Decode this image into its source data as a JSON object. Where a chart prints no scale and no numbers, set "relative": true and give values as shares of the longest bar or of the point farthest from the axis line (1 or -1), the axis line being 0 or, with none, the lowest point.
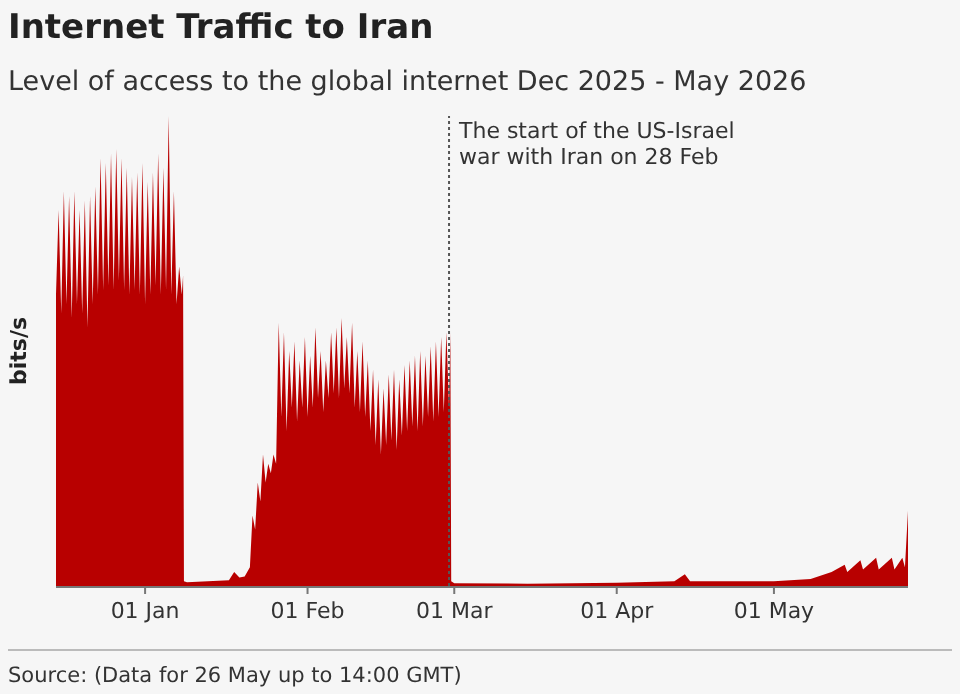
{
  "chart_data": {
    "type": "area",
    "title": "Internet Traffic to Iran",
    "subtitle": "Level of access to the global internet Dec 2025 - May 2026",
    "ylabel": "bits/s",
    "relative": true,
    "color": "#b80000",
    "x": [
      "2025-12-15T00:00",
      "2025-12-15T12:00",
      "2025-12-16T00:00",
      "2025-12-16T12:00",
      "2025-12-17T00:00",
      "2025-12-17T12:00",
      "2025-12-18T00:00",
      "2025-12-18T12:00",
      "2025-12-19T00:00",
      "2025-12-19T12:00",
      "2025-12-20T00:00",
      "2025-12-20T12:00",
      "2025-12-21T00:00",
      "2025-12-21T12:00",
      "2025-12-22T00:00",
      "2025-12-22T12:00",
      "2025-12-23T00:00",
      "2025-12-23T12:00",
      "2025-12-24T00:00",
      "2025-12-24T12:00",
      "2025-12-25T00:00",
      "2025-12-25T12:00",
      "2025-12-26T00:00",
      "2025-12-26T12:00",
      "2025-12-27T00:00",
      "2025-12-27T12:00",
      "2025-12-28T00:00",
      "2025-12-28T12:00",
      "2025-12-29T00:00",
      "2025-12-29T12:00",
      "2025-12-30T00:00",
      "2025-12-30T12:00",
      "2025-12-31T00:00",
      "2025-12-31T12:00",
      "2026-01-01T00:00",
      "2026-01-01T12:00",
      "2026-01-02T00:00",
      "2026-01-02T12:00",
      "2026-01-03T00:00",
      "2026-01-03T12:00",
      "2026-01-04T00:00",
      "2026-01-04T12:00",
      "2026-01-05T00:00",
      "2026-01-05T12:00",
      "2026-01-06T00:00",
      "2026-01-06T12:00",
      "2026-01-07T00:00",
      "2026-01-07T12:00",
      "2026-01-08T00:00",
      "2026-01-08T06:00",
      "2026-01-08T10:00",
      "2026-01-09T00:00",
      "2026-01-13T00:00",
      "2026-01-17T00:00",
      "2026-01-18T00:00",
      "2026-01-19T00:00",
      "2026-01-20T00:00",
      "2026-01-21T00:00",
      "2026-01-21T12:00",
      "2026-01-22T00:00",
      "2026-01-22T12:00",
      "2026-01-23T00:00",
      "2026-01-23T12:00",
      "2026-01-24T00:00",
      "2026-01-24T12:00",
      "2026-01-25T00:00",
      "2026-01-25T12:00",
      "2026-01-26T00:00",
      "2026-01-26T12:00",
      "2026-01-27T00:00",
      "2026-01-27T12:00",
      "2026-01-28T00:00",
      "2026-01-28T12:00",
      "2026-01-29T00:00",
      "2026-01-29T12:00",
      "2026-01-30T00:00",
      "2026-01-30T12:00",
      "2026-01-31T00:00",
      "2026-01-31T12:00",
      "2026-02-01T00:00",
      "2026-02-01T12:00",
      "2026-02-02T00:00",
      "2026-02-02T12:00",
      "2026-02-03T00:00",
      "2026-02-03T12:00",
      "2026-02-04T00:00",
      "2026-02-04T12:00",
      "2026-02-05T00:00",
      "2026-02-05T12:00",
      "2026-02-06T00:00",
      "2026-02-06T12:00",
      "2026-02-07T00:00",
      "2026-02-07T12:00",
      "2026-02-08T00:00",
      "2026-02-08T12:00",
      "2026-02-09T00:00",
      "2026-02-09T12:00",
      "2026-02-10T00:00",
      "2026-02-10T12:00",
      "2026-02-11T00:00",
      "2026-02-11T12:00",
      "2026-02-12T00:00",
      "2026-02-12T12:00",
      "2026-02-13T00:00",
      "2026-02-13T12:00",
      "2026-02-14T00:00",
      "2026-02-14T12:00",
      "2026-02-15T00:00",
      "2026-02-15T12:00",
      "2026-02-16T00:00",
      "2026-02-16T12:00",
      "2026-02-17T00:00",
      "2026-02-17T12:00",
      "2026-02-18T00:00",
      "2026-02-18T12:00",
      "2026-02-19T00:00",
      "2026-02-19T12:00",
      "2026-02-20T00:00",
      "2026-02-20T12:00",
      "2026-02-21T00:00",
      "2026-02-21T12:00",
      "2026-02-22T00:00",
      "2026-02-22T12:00",
      "2026-02-23T00:00",
      "2026-02-23T12:00",
      "2026-02-24T00:00",
      "2026-02-24T12:00",
      "2026-02-25T00:00",
      "2026-02-25T12:00",
      "2026-02-26T00:00",
      "2026-02-26T12:00",
      "2026-02-27T00:00",
      "2026-02-27T12:00",
      "2026-02-28T00:00",
      "2026-02-28T06:00",
      "2026-02-28T10:00",
      "2026-03-01T00:00",
      "2026-03-15T00:00",
      "2026-04-01T00:00",
      "2026-04-12T00:00",
      "2026-04-14T00:00",
      "2026-04-15T00:00",
      "2026-05-01T00:00",
      "2026-05-08T00:00",
      "2026-05-12T00:00",
      "2026-05-14T12:00",
      "2026-05-15T00:00",
      "2026-05-17T12:00",
      "2026-05-18T00:00",
      "2026-05-20T12:00",
      "2026-05-21T00:00",
      "2026-05-23T12:00",
      "2026-05-24T00:00",
      "2026-05-25T12:00",
      "2026-05-26T00:00",
      "2026-05-26T14:00"
    ],
    "values": [
      0.62,
      0.8,
      0.58,
      0.84,
      0.6,
      0.83,
      0.57,
      0.84,
      0.6,
      0.8,
      0.58,
      0.82,
      0.55,
      0.83,
      0.6,
      0.85,
      0.62,
      0.91,
      0.63,
      0.9,
      0.64,
      0.92,
      0.63,
      0.93,
      0.65,
      0.91,
      0.63,
      0.89,
      0.62,
      0.87,
      0.63,
      0.88,
      0.62,
      0.9,
      0.6,
      0.86,
      0.62,
      0.88,
      0.64,
      0.92,
      0.62,
      0.89,
      0.63,
      1.0,
      0.62,
      0.84,
      0.6,
      0.68,
      0.62,
      0.66,
      0.01,
      0.008,
      0.01,
      0.012,
      0.03,
      0.018,
      0.02,
      0.04,
      0.15,
      0.12,
      0.22,
      0.18,
      0.28,
      0.22,
      0.26,
      0.24,
      0.28,
      0.26,
      0.56,
      0.36,
      0.54,
      0.33,
      0.5,
      0.38,
      0.52,
      0.35,
      0.48,
      0.38,
      0.53,
      0.36,
      0.49,
      0.38,
      0.55,
      0.4,
      0.5,
      0.37,
      0.48,
      0.4,
      0.54,
      0.41,
      0.55,
      0.4,
      0.57,
      0.42,
      0.53,
      0.41,
      0.56,
      0.38,
      0.5,
      0.37,
      0.52,
      0.36,
      0.48,
      0.33,
      0.46,
      0.3,
      0.44,
      0.28,
      0.42,
      0.3,
      0.45,
      0.31,
      0.46,
      0.29,
      0.44,
      0.32,
      0.47,
      0.33,
      0.48,
      0.34,
      0.49,
      0.33,
      0.5,
      0.34,
      0.49,
      0.36,
      0.51,
      0.35,
      0.52,
      0.36,
      0.53,
      0.37,
      0.54,
      0.38,
      0.54,
      0.01,
      0.006,
      0.005,
      0.007,
      0.01,
      0.025,
      0.01,
      0.01,
      0.015,
      0.03,
      0.045,
      0.03,
      0.055,
      0.035,
      0.06,
      0.035,
      0.06,
      0.035,
      0.06,
      0.04,
      0.16
    ],
    "xlim": [
      "2025-12-15T00:00",
      "2026-05-26T14:00"
    ],
    "xticks": [
      {
        "value": "2026-01-01",
        "label": "01 Jan"
      },
      {
        "value": "2026-02-01",
        "label": "01 Feb"
      },
      {
        "value": "2026-03-01",
        "label": "01 Mar"
      },
      {
        "value": "2026-04-01",
        "label": "01 Apr"
      },
      {
        "value": "2026-05-01",
        "label": "01 May"
      }
    ],
    "ref_lines": [
      {
        "axis": "x",
        "value": "2026-02-28",
        "label": "The start of the US-Israel war with Iran on 28 Feb",
        "line_style": "dotted",
        "color": "#555555"
      }
    ],
    "annotations": [
      "Source: (Data for 26 May up to 14:00 GMT)"
    ]
  }
}
